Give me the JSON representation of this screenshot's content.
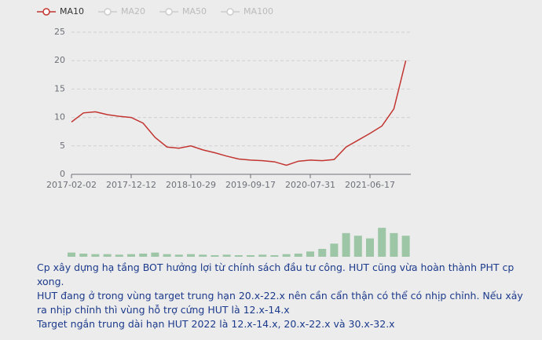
{
  "chart_data": [
    {
      "type": "line",
      "legend": [
        {
          "name": "MA10",
          "color": "#c23531"
        },
        {
          "name": "MA20",
          "color": "#cccccc"
        },
        {
          "name": "MA50",
          "color": "#cccccc"
        },
        {
          "name": "MA100",
          "color": "#cccccc"
        }
      ],
      "categories": [
        "2017-02-02",
        null,
        null,
        null,
        null,
        "2017-12-12",
        null,
        null,
        null,
        null,
        "2018-10-29",
        null,
        null,
        null,
        null,
        "2019-09-17",
        null,
        null,
        null,
        null,
        "2020-07-31",
        null,
        null,
        null,
        null,
        "2021-06-17",
        null,
        null,
        null
      ],
      "series": [
        {
          "name": "MA10",
          "color": "#c23531",
          "values": [
            9.2,
            10.8,
            11,
            10.5,
            10.2,
            10,
            9,
            6.5,
            4.8,
            4.6,
            5,
            4.3,
            3.8,
            3.2,
            2.7,
            2.5,
            2.4,
            2.2,
            1.6,
            2.3,
            2.5,
            2.4,
            2.6,
            4.8,
            6,
            7.2,
            8.5,
            11.5,
            20
          ]
        }
      ],
      "ylim": [
        0,
        25
      ],
      "yticks": [
        0,
        5,
        10,
        15,
        20,
        25
      ],
      "grid": true
    },
    {
      "type": "bar",
      "color": "#8fbf9a",
      "values": [
        8,
        6,
        5,
        5,
        4,
        5,
        6,
        8,
        5,
        4,
        5,
        4,
        3,
        4,
        3,
        3,
        4,
        3,
        5,
        6,
        10,
        15,
        25,
        45,
        40,
        35,
        55,
        45,
        40
      ],
      "ylim": [
        0,
        100
      ]
    }
  ],
  "post": {
    "lines": [
      "Cp xây dựng hạ tầng BOT hưởng lợi từ chính sách đầu tư công. HUT cũng vừa hoàn thành PHT cp xong.",
      "HUT đang ở trong vùng target trung hạn 20.x-22.x nên cần cẩn thận có thể có nhịp chỉnh. Nếu xảy ra nhịp chỉnh thì vùng hỗ trợ cứng HUT là 12.x-14.x",
      "Target ngắn trung dài hạn HUT 2022 là 12.x-14.x, 20.x-22.x và 30.x-32.x"
    ]
  }
}
